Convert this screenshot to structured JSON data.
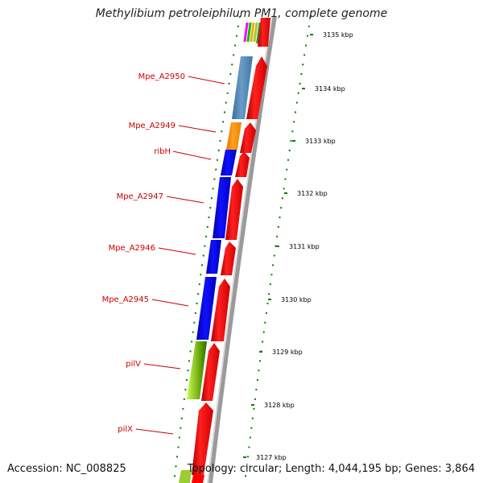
{
  "title": "Methylibium petroleiphilum PM1, complete genome",
  "footer": {
    "accession": "Accession: NC_008825",
    "info": "Topology: circular; Length: 4,044,195 bp; Genes: 3,864"
  },
  "scale": {
    "unit": "kbp",
    "ticks": [
      {
        "label": "3135 kbp",
        "value": 3135
      },
      {
        "label": "3134 kbp",
        "value": 3134
      },
      {
        "label": "3133 kbp",
        "value": 3133
      },
      {
        "label": "3132 kbp",
        "value": 3132
      },
      {
        "label": "3131 kbp",
        "value": 3131
      },
      {
        "label": "3130 kbp",
        "value": 3130
      },
      {
        "label": "3129 kbp",
        "value": 3129
      },
      {
        "label": "3128 kbp",
        "value": 3128
      },
      {
        "label": "3127 kbp",
        "value": 3127
      }
    ]
  },
  "genes": [
    {
      "name": "Mpe_A2950",
      "color": "#4682b4"
    },
    {
      "name": "Mpe_A2949",
      "color": "#ff8c00"
    },
    {
      "name": "ribH",
      "color": "#0000ff"
    },
    {
      "name": "Mpe_A2947",
      "color": "#0000ff"
    },
    {
      "name": "Mpe_A2946",
      "color": "#0000ff"
    },
    {
      "name": "Mpe_A2945",
      "color": "#0000ff"
    },
    {
      "name": "pilV",
      "color": "#9acd32"
    },
    {
      "name": "pilX",
      "color": "#ff0000"
    }
  ],
  "colors": {
    "cds": "#ff0000",
    "backbone": "#9a9a9a",
    "label_text": "#cc0000",
    "tick": "#008000"
  }
}
